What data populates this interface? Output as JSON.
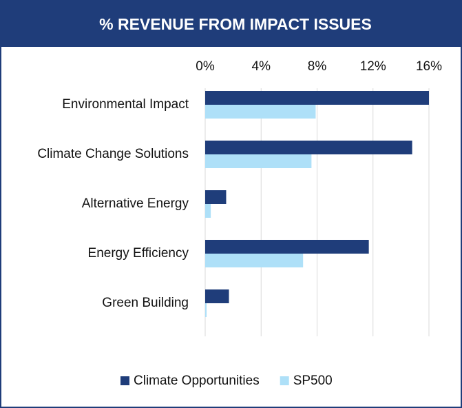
{
  "chart_data": {
    "type": "hbar",
    "title": "% REVENUE FROM IMPACT ISSUES",
    "categories": [
      "Environmental Impact",
      "Climate Change Solutions",
      "Alternative Energy",
      "Energy Efficiency",
      "Green Building"
    ],
    "series": [
      {
        "name": "Climate Opportunities",
        "color": "#1f3d7a",
        "values": [
          16.0,
          14.8,
          1.5,
          11.7,
          1.7
        ]
      },
      {
        "name": "SP500",
        "color": "#aee0f8",
        "values": [
          7.9,
          7.6,
          0.4,
          7.0,
          0.1
        ]
      }
    ],
    "xlim": [
      0,
      16
    ],
    "xticks": [
      {
        "value": 0,
        "label": "0%"
      },
      {
        "value": 4,
        "label": "4%"
      },
      {
        "value": 8,
        "label": "8%"
      },
      {
        "value": 12,
        "label": "12%"
      },
      {
        "value": 16,
        "label": "16%"
      }
    ],
    "grid": true,
    "legend": "bottom"
  }
}
